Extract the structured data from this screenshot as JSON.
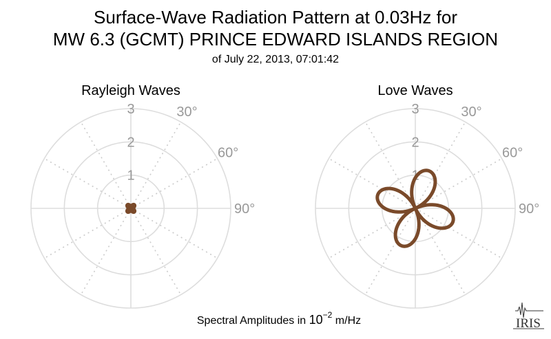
{
  "figure": {
    "title_line1": "Surface-Wave Radiation Pattern at 0.03Hz for",
    "title_line2": "MW 6.3 (GCMT) PRINCE EDWARD ISLANDS REGION",
    "subtitle": "of July 22, 2013, 07:01:42",
    "footer_prefix": "Spectral Amplitudes in ",
    "footer_base": "10",
    "footer_exponent": "−2",
    "footer_unit": " m/Hz",
    "logo_text": "IRIS",
    "curve_color": "#7a4a2a"
  },
  "chart_data": [
    {
      "type": "polar-line",
      "title": "Rayleigh Waves",
      "r_ticks": [
        "1",
        "2",
        "3"
      ],
      "r_lim": [
        0,
        3
      ],
      "angle_tick_labels": [
        "30°",
        "60°",
        "90°"
      ],
      "direction": "clockwise",
      "zero_at": "top",
      "pattern": "four-lobe",
      "max_amplitude": 0.15,
      "lobe_azimuths_deg": [
        45,
        135,
        225,
        315
      ]
    },
    {
      "type": "polar-line",
      "title": "Love Waves",
      "r_ticks": [
        "1",
        "2",
        "3"
      ],
      "r_lim": [
        0,
        3
      ],
      "angle_tick_labels": [
        "30°",
        "60°",
        "90°"
      ],
      "direction": "clockwise",
      "zero_at": "top",
      "pattern": "four-lobe",
      "max_amplitude": 1.2,
      "lobe_azimuths_deg": [
        20,
        110,
        200,
        290
      ]
    }
  ]
}
